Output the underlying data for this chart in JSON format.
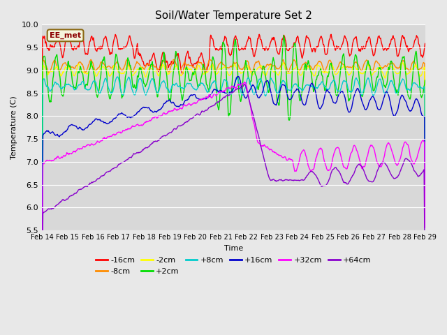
{
  "title": "Soil/Water Temperature Set 2",
  "xlabel": "Time",
  "ylabel": "Temperature (C)",
  "ylim": [
    5.5,
    10.0
  ],
  "x_tick_labels": [
    "Feb 14",
    "Feb 15",
    "Feb 16",
    "Feb 17",
    "Feb 18",
    "Feb 19",
    "Feb 20",
    "Feb 21",
    "Feb 22",
    "Feb 23",
    "Feb 24",
    "Feb 25",
    "Feb 26",
    "Feb 27",
    "Feb 28",
    "Feb 29"
  ],
  "annotation_text": "EE_met",
  "annotation_color": "#8B0000",
  "annotation_bg": "#F5F5DC",
  "annotation_edge": "#8B6914",
  "series": [
    {
      "label": "-16cm",
      "color": "#FF0000"
    },
    {
      "label": "-8cm",
      "color": "#FF8C00"
    },
    {
      "label": "-2cm",
      "color": "#FFFF00"
    },
    {
      "label": "+2cm",
      "color": "#00DD00"
    },
    {
      "label": "+8cm",
      "color": "#00CCCC"
    },
    {
      "label": "+16cm",
      "color": "#0000CC"
    },
    {
      "label": "+32cm",
      "color": "#FF00FF"
    },
    {
      "label": "+64cm",
      "color": "#8800CC"
    }
  ],
  "bg_color": "#E8E8E8",
  "plot_bg": "#D8D8D8",
  "grid_color": "#FFFFFF",
  "yticks": [
    5.5,
    6.0,
    6.5,
    7.0,
    7.5,
    8.0,
    8.5,
    9.0,
    9.5,
    10.0
  ]
}
